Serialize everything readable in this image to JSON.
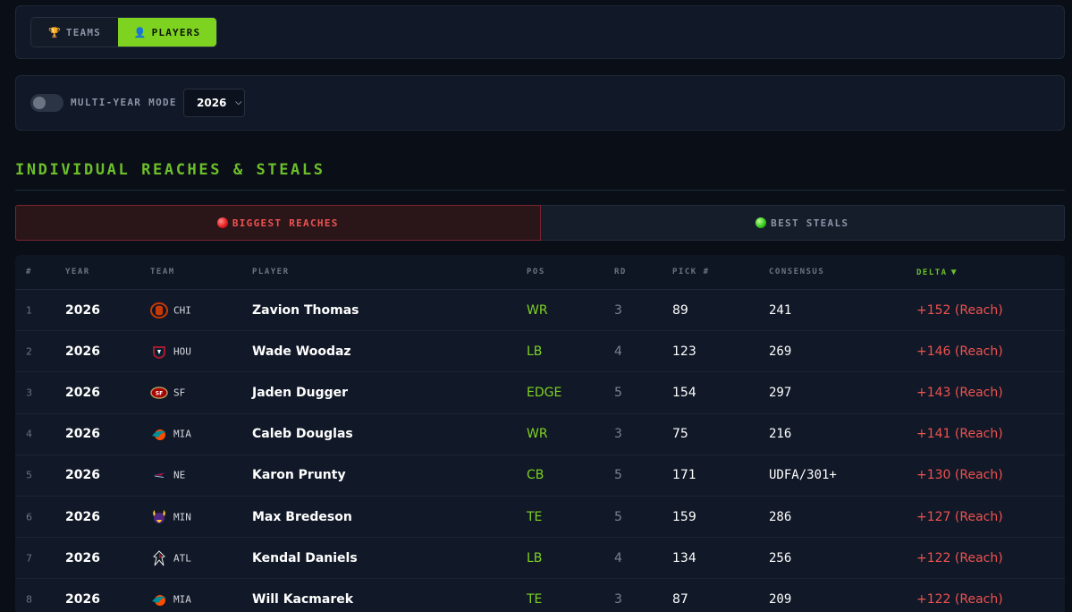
{
  "view_toggle": {
    "teams": {
      "label": "TEAMS",
      "icon": "trophy-icon"
    },
    "players": {
      "label": "PLAYERS",
      "icon": "user-icon",
      "active": true
    }
  },
  "mode": {
    "label": "MULTI-YEAR MODE",
    "enabled": false,
    "year_selected": "2026"
  },
  "section_title": "INDIVIDUAL REACHES & STEALS",
  "tabs": {
    "reaches": {
      "label": "BIGGEST REACHES",
      "active": true
    },
    "steals": {
      "label": "BEST STEALS",
      "active": false
    }
  },
  "table": {
    "headers": {
      "rank": "#",
      "year": "YEAR",
      "team": "TEAM",
      "player": "PLAYER",
      "pos": "POS",
      "rd": "RD",
      "pick": "PICK #",
      "consensus": "CONSENSUS",
      "delta": "DELTA"
    },
    "sort": {
      "column": "delta",
      "direction": "desc"
    },
    "rows": [
      {
        "rank": "1",
        "year": "2026",
        "team": "CHI",
        "logo": "bears-logo-icon",
        "player": "Zavion Thomas",
        "pos": "WR",
        "rd": "3",
        "pick": "89",
        "consensus": "241",
        "delta": "+152 (Reach)"
      },
      {
        "rank": "2",
        "year": "2026",
        "team": "HOU",
        "logo": "texans-logo-icon",
        "player": "Wade Woodaz",
        "pos": "LB",
        "rd": "4",
        "pick": "123",
        "consensus": "269",
        "delta": "+146 (Reach)"
      },
      {
        "rank": "3",
        "year": "2026",
        "team": "SF",
        "logo": "49ers-logo-icon",
        "player": "Jaden Dugger",
        "pos": "EDGE",
        "rd": "5",
        "pick": "154",
        "consensus": "297",
        "delta": "+143 (Reach)"
      },
      {
        "rank": "4",
        "year": "2026",
        "team": "MIA",
        "logo": "dolphins-logo-icon",
        "player": "Caleb Douglas",
        "pos": "WR",
        "rd": "3",
        "pick": "75",
        "consensus": "216",
        "delta": "+141 (Reach)"
      },
      {
        "rank": "5",
        "year": "2026",
        "team": "NE",
        "logo": "patriots-logo-icon",
        "player": "Karon Prunty",
        "pos": "CB",
        "rd": "5",
        "pick": "171",
        "consensus": "UDFA/301+",
        "delta": "+130 (Reach)"
      },
      {
        "rank": "6",
        "year": "2026",
        "team": "MIN",
        "logo": "vikings-logo-icon",
        "player": "Max Bredeson",
        "pos": "TE",
        "rd": "5",
        "pick": "159",
        "consensus": "286",
        "delta": "+127 (Reach)"
      },
      {
        "rank": "7",
        "year": "2026",
        "team": "ATL",
        "logo": "falcons-logo-icon",
        "player": "Kendal Daniels",
        "pos": "LB",
        "rd": "4",
        "pick": "134",
        "consensus": "256",
        "delta": "+122 (Reach)"
      },
      {
        "rank": "8",
        "year": "2026",
        "team": "MIA",
        "logo": "dolphins-logo-icon",
        "player": "Will Kacmarek",
        "pos": "TE",
        "rd": "3",
        "pick": "87",
        "consensus": "209",
        "delta": "+122 (Reach)"
      }
    ]
  },
  "colors": {
    "accent_green": "#7ed321",
    "reach_red": "#ef5350",
    "background": "#0a0e17"
  }
}
